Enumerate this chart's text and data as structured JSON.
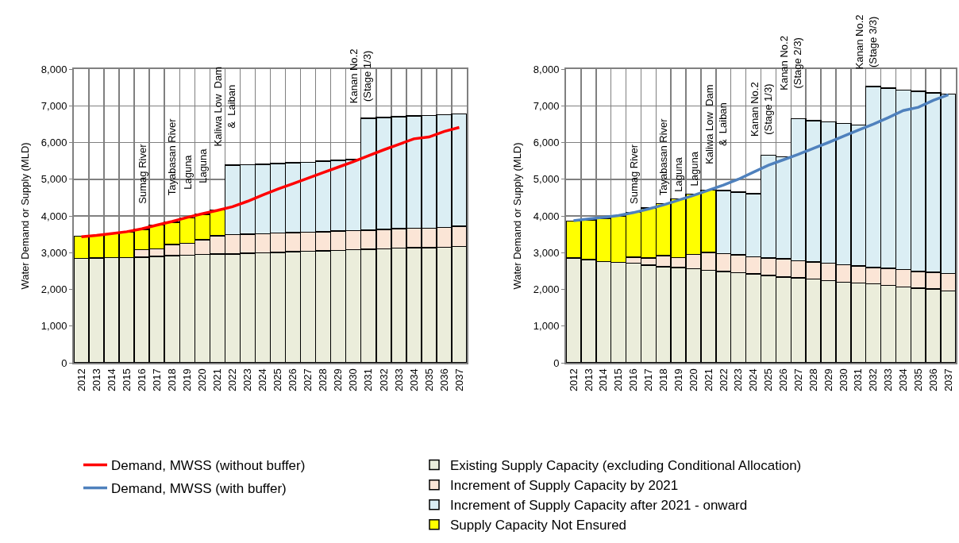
{
  "chart_data": [
    {
      "type": "bar",
      "stacked": true,
      "ylabel": "Water Demand or Supply (MLD)",
      "ylim": [
        0,
        8000
      ],
      "yticks": [
        {
          "value": 0,
          "label": "0"
        },
        {
          "value": 1000,
          "label": "1,000"
        },
        {
          "value": 2000,
          "label": "2,000"
        },
        {
          "value": 3000,
          "label": "3,000"
        },
        {
          "value": 4000,
          "label": "4,000"
        },
        {
          "value": 5000,
          "label": "5,000"
        },
        {
          "value": 6000,
          "label": "6,000"
        },
        {
          "value": 7000,
          "label": "7,000"
        },
        {
          "value": 8000,
          "label": "8,000"
        }
      ],
      "grid": true,
      "legend": "bottom",
      "categories": [
        "2012",
        "2013",
        "2014",
        "2015",
        "2016",
        "2017",
        "2018",
        "2019",
        "2020",
        "2021",
        "2022",
        "2023",
        "2024",
        "2025",
        "2026",
        "2027",
        "2028",
        "2029",
        "2030",
        "2031",
        "2032",
        "2033",
        "2034",
        "2035",
        "2036",
        "2037"
      ],
      "series": [
        {
          "name": "Existing Supply Capacity (excluding Conditional Allocation)",
          "color": "#ebeddb",
          "values": [
            2840,
            2850,
            2860,
            2870,
            2880,
            2900,
            2920,
            2930,
            2950,
            2960,
            2960,
            2980,
            3000,
            3010,
            3030,
            3040,
            3050,
            3060,
            3080,
            3090,
            3100,
            3120,
            3130,
            3140,
            3150,
            3170
          ]
        },
        {
          "name": "Increment of Supply Capacity by 2021",
          "color": "#fbe5d6",
          "values": [
            null,
            null,
            null,
            null,
            200,
            200,
            300,
            320,
            400,
            500,
            530,
            520,
            510,
            520,
            520,
            520,
            520,
            530,
            520,
            520,
            530,
            530,
            530,
            530,
            540,
            550
          ]
        },
        {
          "name": "Increment of Supply Capacity after 2021 - onward",
          "color": "#dbeef4",
          "values": [
            null,
            null,
            null,
            null,
            null,
            null,
            null,
            null,
            null,
            null,
            1890,
            1890,
            1900,
            1900,
            1900,
            1900,
            1920,
            1920,
            1930,
            3050,
            3050,
            3050,
            3060,
            3070,
            3070,
            3060
          ]
        },
        {
          "name": "Supply Capacity Not Ensured",
          "color": "#ffff00",
          "values": [
            610,
            620,
            650,
            690,
            550,
            650,
            610,
            700,
            690,
            700,
            null,
            null,
            null,
            null,
            null,
            null,
            null,
            null,
            null,
            null,
            null,
            null,
            null,
            null,
            null,
            null
          ]
        },
        {
          "type": "line",
          "name": "Demand, MWSS (without buffer)",
          "color": "#ff0000",
          "marker": "none",
          "line_style": "solid",
          "values": [
            3430,
            3470,
            3520,
            3570,
            3650,
            3750,
            3850,
            3960,
            4060,
            4150,
            4250,
            4400,
            4570,
            4730,
            4880,
            5030,
            5180,
            5330,
            5480,
            5640,
            5800,
            5950,
            6100,
            6150,
            6300,
            6410
          ]
        }
      ],
      "annotations": [
        "Sumag River",
        "Tayabasan River",
        "Laguna",
        "Laguna",
        "Kaliwa Low  Dam\n&  Laiban",
        "Kanan No.2\n(Stage 1/3)"
      ]
    },
    {
      "type": "bar",
      "stacked": true,
      "ylabel": "Water Demand or Supply (MLD)",
      "ylim": [
        0,
        8000
      ],
      "yticks": [
        {
          "value": 0,
          "label": "0"
        },
        {
          "value": 1000,
          "label": "1,000"
        },
        {
          "value": 2000,
          "label": "2,000"
        },
        {
          "value": 3000,
          "label": "3,000"
        },
        {
          "value": 4000,
          "label": "4,000"
        },
        {
          "value": 5000,
          "label": "5,000"
        },
        {
          "value": 6000,
          "label": "6,000"
        },
        {
          "value": 7000,
          "label": "7,000"
        },
        {
          "value": 8000,
          "label": "8,000"
        }
      ],
      "grid": true,
      "legend": "bottom",
      "categories": [
        "2012",
        "2013",
        "2014",
        "2015",
        "2016",
        "2017",
        "2018",
        "2019",
        "2020",
        "2021",
        "2022",
        "2023",
        "2024",
        "2025",
        "2026",
        "2027",
        "2028",
        "2029",
        "2030",
        "2031",
        "2032",
        "2033",
        "2034",
        "2035",
        "2036",
        "2037"
      ],
      "series": [
        {
          "color": "#ebeddb",
          "values": [
            2850,
            2810,
            2760,
            2730,
            2710,
            2660,
            2620,
            2590,
            2560,
            2520,
            2490,
            2450,
            2420,
            2380,
            2340,
            2310,
            2280,
            2240,
            2200,
            2170,
            2150,
            2110,
            2060,
            2030,
            2010,
            1960
          ]
        },
        {
          "color": "#fbe5d6",
          "values": [
            null,
            null,
            null,
            null,
            170,
            190,
            300,
            280,
            390,
            490,
            480,
            490,
            470,
            470,
            490,
            470,
            470,
            470,
            470,
            470,
            450,
            460,
            480,
            460,
            450,
            470
          ]
        },
        {
          "color": "#dbeef4",
          "values": [
            null,
            null,
            null,
            null,
            null,
            null,
            null,
            null,
            null,
            null,
            1720,
            1710,
            1720,
            2800,
            2780,
            3870,
            3850,
            3850,
            3850,
            3840,
            4920,
            4910,
            4890,
            4900,
            4890,
            4890
          ]
        },
        {
          "color": "#ffff00",
          "values": [
            1010,
            1080,
            1180,
            1260,
            1220,
            1370,
            1410,
            1590,
            1640,
            1690,
            null,
            null,
            null,
            null,
            null,
            null,
            null,
            null,
            null,
            null,
            null,
            null,
            null,
            null,
            null,
            null
          ]
        },
        {
          "type": "line",
          "name": "Demand, MWSS (with buffer)",
          "color": "#4f81bd",
          "marker": "none",
          "line_style": "solid",
          "values": [
            3870,
            3920,
            3960,
            4010,
            4090,
            4190,
            4300,
            4430,
            4560,
            4700,
            4840,
            5000,
            5190,
            5380,
            5530,
            5680,
            5840,
            6000,
            6170,
            6340,
            6500,
            6680,
            6870,
            6960,
            7150,
            7300
          ]
        }
      ],
      "annotations": [
        "Sumag River",
        "Tayabasan River",
        "Laguna",
        "Laguna",
        "Kaliwa Low  Dam\n&  Laiban",
        "Kanan No.2\n(Stage 1/3)",
        "Kanan No.2\n(Stage 2/3)",
        "Kanan No.2\n(Stage 3/3)"
      ]
    }
  ]
}
